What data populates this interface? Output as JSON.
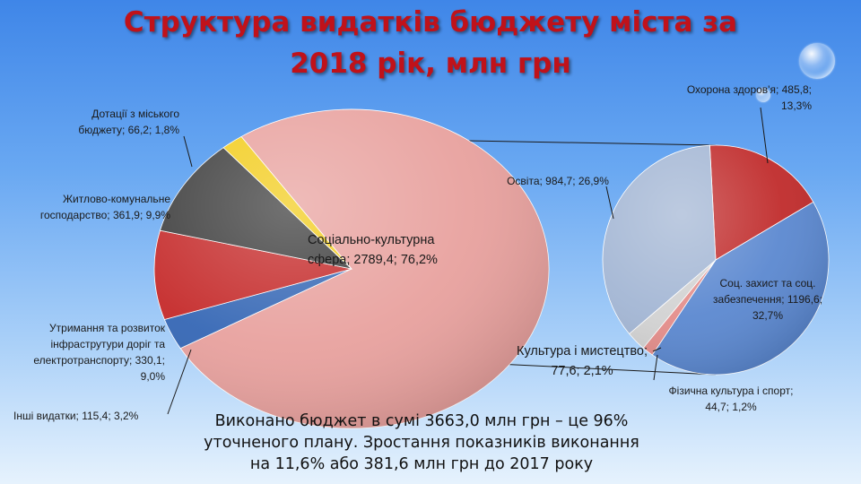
{
  "title": {
    "line1": "Структура видатків бюджету міста за",
    "line2": "2018 рік, млн грн"
  },
  "chart_data": [
    {
      "type": "pie",
      "slices": [
        {
          "label": "Соціально-культурна сфера",
          "value": 2789.4,
          "percent": 76.2,
          "color": "#e8a19e",
          "label_lines": [
            "Соціально-культурна",
            "сфера; 2789,4; 76,2%"
          ]
        },
        {
          "label": "Інші видатки",
          "value": 115.4,
          "percent": 3.2,
          "color": "#3567b5",
          "label_lines": [
            "Інші видатки; 115,4; 3,2%"
          ]
        },
        {
          "label": "Утримання та розвиток інфраструтури доріг та електротранспорту",
          "value": 330.1,
          "percent": 9.0,
          "color": "#c52a2a",
          "label_lines": [
            "Утримання та розвиток",
            "інфраструтури доріг та",
            "електротранспорту;  330,1;",
            "9,0%"
          ]
        },
        {
          "label": "Житлово-комунальне господарство",
          "value": 361.9,
          "percent": 9.9,
          "color": "#3c3c3c",
          "label_lines": [
            "Житлово-комунальне",
            "господарство; 361,9; 9,9%"
          ]
        },
        {
          "label": "Дотації з міського бюджету",
          "value": 66.2,
          "percent": 1.8,
          "color": "#f2cc1b",
          "label_lines": [
            "Дотації з міського",
            "бюджету; 66,2; 1,8%"
          ]
        }
      ]
    },
    {
      "type": "pie",
      "slices": [
        {
          "label": "Охорона здоров'я",
          "value": 485.8,
          "percent": 13.3,
          "color": "#c02b2b",
          "label_lines": [
            "Охорона здоров'я; 485,8;",
            "13,3%"
          ]
        },
        {
          "label": "Соц. захист та соц. забезпечення",
          "value": 1196.6,
          "percent": 32.7,
          "color": "#5b88d0",
          "label_lines": [
            "Соц. захист та соц.",
            "забезпечення; 1196,6;",
            "32,7%"
          ]
        },
        {
          "label": "Фізична культура і спорт",
          "value": 44.7,
          "percent": 1.2,
          "color": "#e48d8a",
          "label_lines": [
            "Фізична культура і спорт;",
            "44,7; 1,2%"
          ]
        },
        {
          "label": "Культура і мистецтво",
          "value": 77.6,
          "percent": 2.1,
          "color": "#d2d2d2",
          "label_lines": [
            "Культура і мистецтво;",
            "77,6; 2,1%"
          ]
        },
        {
          "label": "Освіта",
          "value": 984.7,
          "percent": 26.9,
          "color": "#a3b6d4",
          "label_lines": [
            "Освіта; 984,7; 26,9%"
          ]
        }
      ]
    }
  ],
  "footnote": {
    "line1": "Виконано  бюджет в сумі 3663,0 млн  грн  – це 96%",
    "line2": "уточненого плану.  Зростання показників  виконання",
    "line3": "на 11,6% або 381,6 млн  грн до 2017 року"
  }
}
